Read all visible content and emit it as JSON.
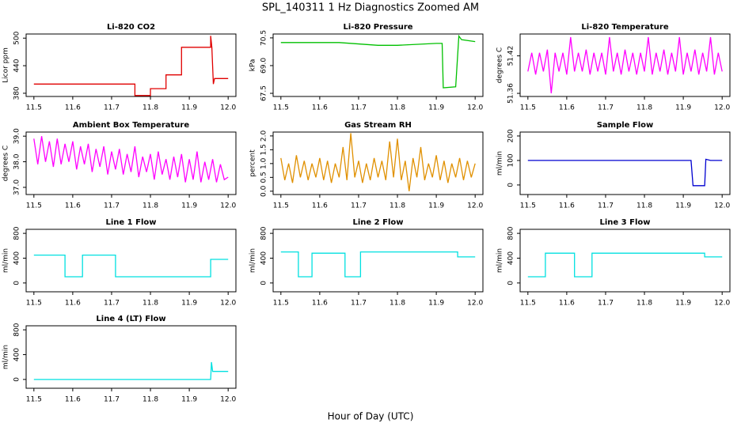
{
  "title": "SPL_140311  1 Hz Diagnostics Zoomed AM",
  "xlabel": "Hour of Day (UTC)",
  "chart_data": [
    {
      "type": "line",
      "title": "Li-820 CO2",
      "ylabel": "Licor ppm",
      "color": "#e00000",
      "xlim": [
        11.48,
        12.02
      ],
      "xticks": [
        11.5,
        11.6,
        11.7,
        11.8,
        11.9,
        {
          "value": 12,
          "label": "12.0"
        }
      ],
      "ylim": [
        373,
        509
      ],
      "yticks": [
        380,
        440,
        500
      ],
      "x": [
        11.5,
        11.76,
        11.76,
        11.8,
        11.8,
        11.84,
        11.84,
        11.88,
        11.88,
        11.955,
        11.955,
        11.958,
        11.962,
        11.965,
        12.0
      ],
      "values": [
        400,
        400,
        375,
        375,
        390,
        390,
        420,
        420,
        480,
        480,
        505,
        480,
        400,
        412,
        412
      ]
    },
    {
      "type": "line",
      "title": "Li-820 Pressure",
      "ylabel": "kPa",
      "color": "#00c000",
      "xlim": [
        11.48,
        12.02
      ],
      "xticks": [
        11.5,
        11.6,
        11.7,
        11.8,
        11.9,
        {
          "value": 12,
          "label": "12.0"
        }
      ],
      "ylim": [
        67.33,
        70.71
      ],
      "yticks": [
        67.5,
        {
          "value": 69,
          "label": "69.0"
        },
        70.5
      ],
      "x": [
        11.5,
        11.65,
        11.75,
        11.8,
        11.9,
        11.915,
        11.918,
        11.95,
        11.958,
        11.965,
        12.0
      ],
      "values": [
        70.25,
        70.25,
        70.1,
        70.1,
        70.2,
        70.2,
        67.8,
        67.85,
        70.6,
        70.4,
        70.3
      ]
    },
    {
      "type": "line",
      "title": "Li-820 Temperature",
      "ylabel": "degrees C",
      "color": "#ff00ff",
      "xlim": [
        11.48,
        12.02
      ],
      "xticks": [
        11.5,
        11.6,
        11.7,
        11.8,
        11.9,
        {
          "value": 12,
          "label": "12.0"
        }
      ],
      "ylim": [
        51.355,
        51.455
      ],
      "yticks": [
        51.36,
        51.42
      ],
      "x": [
        11.5,
        11.51,
        11.52,
        11.53,
        11.54,
        11.55,
        11.56,
        11.57,
        11.58,
        11.59,
        11.6,
        11.61,
        11.62,
        11.63,
        11.64,
        11.65,
        11.66,
        11.67,
        11.68,
        11.69,
        11.7,
        11.71,
        11.72,
        11.73,
        11.74,
        11.75,
        11.76,
        11.77,
        11.78,
        11.79,
        11.8,
        11.81,
        11.82,
        11.83,
        11.84,
        11.85,
        11.86,
        11.87,
        11.88,
        11.89,
        11.9,
        11.91,
        11.92,
        11.93,
        11.94,
        11.95,
        11.96,
        11.97,
        11.98,
        11.99,
        12.0
      ],
      "values": [
        51.395,
        51.425,
        51.39,
        51.425,
        51.395,
        51.43,
        51.36,
        51.425,
        51.395,
        51.425,
        51.39,
        51.45,
        51.395,
        51.425,
        51.395,
        51.43,
        51.39,
        51.425,
        51.395,
        51.425,
        51.39,
        51.45,
        51.395,
        51.425,
        51.39,
        51.43,
        51.395,
        51.425,
        51.39,
        51.425,
        51.395,
        51.45,
        51.39,
        51.425,
        51.395,
        51.43,
        51.39,
        51.425,
        51.395,
        51.45,
        51.39,
        51.425,
        51.395,
        51.43,
        51.39,
        51.425,
        51.395,
        51.45,
        51.39,
        51.425,
        51.395
      ]
    },
    {
      "type": "line",
      "title": "Ambient Box Temperature",
      "ylabel": "degrees C",
      "color": "#ff00ff",
      "xlim": [
        11.48,
        12.02
      ],
      "xticks": [
        11.5,
        11.6,
        11.7,
        11.8,
        11.9,
        {
          "value": 12,
          "label": "12.0"
        }
      ],
      "ylim": [
        36.72,
        39.16
      ],
      "yticks": [
        {
          "value": 37,
          "label": "37.0"
        },
        {
          "value": 38,
          "label": "38.0"
        },
        {
          "value": 39,
          "label": "39.0"
        }
      ],
      "x": [
        11.5,
        11.51,
        11.52,
        11.53,
        11.54,
        11.55,
        11.56,
        11.57,
        11.58,
        11.59,
        11.6,
        11.61,
        11.62,
        11.63,
        11.64,
        11.65,
        11.66,
        11.67,
        11.68,
        11.69,
        11.7,
        11.71,
        11.72,
        11.73,
        11.74,
        11.75,
        11.76,
        11.77,
        11.78,
        11.79,
        11.8,
        11.81,
        11.82,
        11.83,
        11.84,
        11.85,
        11.86,
        11.87,
        11.88,
        11.89,
        11.9,
        11.91,
        11.92,
        11.93,
        11.94,
        11.95,
        11.96,
        11.97,
        11.98,
        11.99,
        12.0
      ],
      "values": [
        38.9,
        37.9,
        39.0,
        38.0,
        38.8,
        37.8,
        38.9,
        37.9,
        38.7,
        38.0,
        38.8,
        37.7,
        38.6,
        37.9,
        38.7,
        37.6,
        38.5,
        37.8,
        38.6,
        37.5,
        38.4,
        37.7,
        38.5,
        37.5,
        38.3,
        37.6,
        38.6,
        37.4,
        38.2,
        37.6,
        38.3,
        37.3,
        38.4,
        37.5,
        38.1,
        37.3,
        38.2,
        37.4,
        38.3,
        37.2,
        38.1,
        37.3,
        38.4,
        37.2,
        38.0,
        37.3,
        38.1,
        37.2,
        37.9,
        37.3,
        37.4
      ]
    },
    {
      "type": "line",
      "title": "Gas Stream RH",
      "ylabel": "percent",
      "color": "#e09000",
      "xlim": [
        11.48,
        12.02
      ],
      "xticks": [
        11.5,
        11.6,
        11.7,
        11.8,
        11.9,
        {
          "value": 12,
          "label": "12.0"
        }
      ],
      "ylim": [
        -0.12,
        2.14
      ],
      "yticks": [
        {
          "value": 0,
          "label": "0.0"
        },
        0.5,
        {
          "value": 1,
          "label": "1.0"
        },
        1.5,
        {
          "value": 2,
          "label": "2.0"
        }
      ],
      "x": [
        11.5,
        11.51,
        11.52,
        11.53,
        11.54,
        11.55,
        11.56,
        11.57,
        11.58,
        11.59,
        11.6,
        11.61,
        11.62,
        11.63,
        11.64,
        11.65,
        11.66,
        11.67,
        11.68,
        11.69,
        11.7,
        11.71,
        11.72,
        11.73,
        11.74,
        11.75,
        11.76,
        11.77,
        11.78,
        11.79,
        11.8,
        11.81,
        11.82,
        11.83,
        11.84,
        11.85,
        11.86,
        11.87,
        11.88,
        11.89,
        11.9,
        11.91,
        11.92,
        11.93,
        11.94,
        11.95,
        11.96,
        11.97,
        11.98,
        11.99,
        12.0
      ],
      "values": [
        1.2,
        0.4,
        1.0,
        0.3,
        1.3,
        0.5,
        1.1,
        0.4,
        1.0,
        0.5,
        1.2,
        0.4,
        1.1,
        0.3,
        1.0,
        0.5,
        1.6,
        0.4,
        2.1,
        0.5,
        1.1,
        0.3,
        1.0,
        0.4,
        1.2,
        0.5,
        1.1,
        0.4,
        1.8,
        0.5,
        1.9,
        0.4,
        1.1,
        0.0,
        1.2,
        0.5,
        1.6,
        0.4,
        1.0,
        0.5,
        1.3,
        0.4,
        1.1,
        0.3,
        1.0,
        0.5,
        1.2,
        0.4,
        1.1,
        0.5,
        1.0
      ]
    },
    {
      "type": "line",
      "title": "Sample Flow",
      "ylabel": "ml/min",
      "color": "#0000d0",
      "xlim": [
        11.48,
        12.02
      ],
      "xticks": [
        11.5,
        11.6,
        11.7,
        11.8,
        11.9,
        {
          "value": 12,
          "label": "12.0"
        }
      ],
      "ylim": [
        -39,
        216
      ],
      "yticks": [
        0,
        100,
        200
      ],
      "x": [
        11.5,
        11.8,
        11.9,
        11.92,
        11.925,
        11.955,
        11.958,
        11.97,
        12.0
      ],
      "values": [
        100,
        100,
        100,
        100,
        -3,
        -3,
        105,
        100,
        100
      ]
    },
    {
      "type": "line",
      "title": "Line 1 Flow",
      "ylabel": "ml/min",
      "color": "#00e0e0",
      "xlim": [
        11.48,
        12.02
      ],
      "xticks": [
        11.5,
        11.6,
        11.7,
        11.8,
        11.9,
        {
          "value": 12,
          "label": "12.0"
        }
      ],
      "ylim": [
        -142,
        865
      ],
      "yticks": [
        0,
        400,
        800
      ],
      "x": [
        11.5,
        11.58,
        11.58,
        11.625,
        11.625,
        11.71,
        11.71,
        11.955,
        11.955,
        12.0
      ],
      "values": [
        450,
        450,
        100,
        100,
        450,
        450,
        100,
        100,
        380,
        380
      ]
    },
    {
      "type": "line",
      "title": "Line 2 Flow",
      "ylabel": "ml/min",
      "color": "#00e0e0",
      "xlim": [
        11.48,
        12.02
      ],
      "xticks": [
        11.5,
        11.6,
        11.7,
        11.8,
        11.9,
        {
          "value": 12,
          "label": "12.0"
        }
      ],
      "ylim": [
        -142,
        865
      ],
      "yticks": [
        0,
        400,
        800
      ],
      "x": [
        11.5,
        11.545,
        11.545,
        11.58,
        11.58,
        11.665,
        11.665,
        11.705,
        11.705,
        11.955,
        11.955,
        12.0
      ],
      "values": [
        500,
        500,
        100,
        100,
        480,
        480,
        100,
        100,
        500,
        500,
        420,
        420
      ]
    },
    {
      "type": "line",
      "title": "Line 3 Flow",
      "ylabel": "ml/min",
      "color": "#00e0e0",
      "xlim": [
        11.48,
        12.02
      ],
      "xticks": [
        11.5,
        11.6,
        11.7,
        11.8,
        11.9,
        {
          "value": 12,
          "label": "12.0"
        }
      ],
      "ylim": [
        -142,
        865
      ],
      "yticks": [
        0,
        400,
        800
      ],
      "x": [
        11.5,
        11.545,
        11.545,
        11.62,
        11.62,
        11.665,
        11.665,
        11.955,
        11.955,
        12.0
      ],
      "values": [
        100,
        100,
        480,
        480,
        100,
        100,
        480,
        480,
        420,
        420
      ]
    },
    {
      "type": "line",
      "title": "Line 4 (LT) Flow",
      "ylabel": "ml/min",
      "color": "#00e0e0",
      "xlim": [
        11.48,
        12.02
      ],
      "xticks": [
        11.5,
        11.6,
        11.7,
        11.8,
        11.9,
        {
          "value": 12,
          "label": "12.0"
        }
      ],
      "ylim": [
        -142,
        865
      ],
      "yticks": [
        0,
        400,
        800
      ],
      "x": [
        11.5,
        11.955,
        11.957,
        11.96,
        11.965,
        12.0
      ],
      "values": [
        0,
        0,
        280,
        130,
        130,
        130
      ]
    }
  ]
}
